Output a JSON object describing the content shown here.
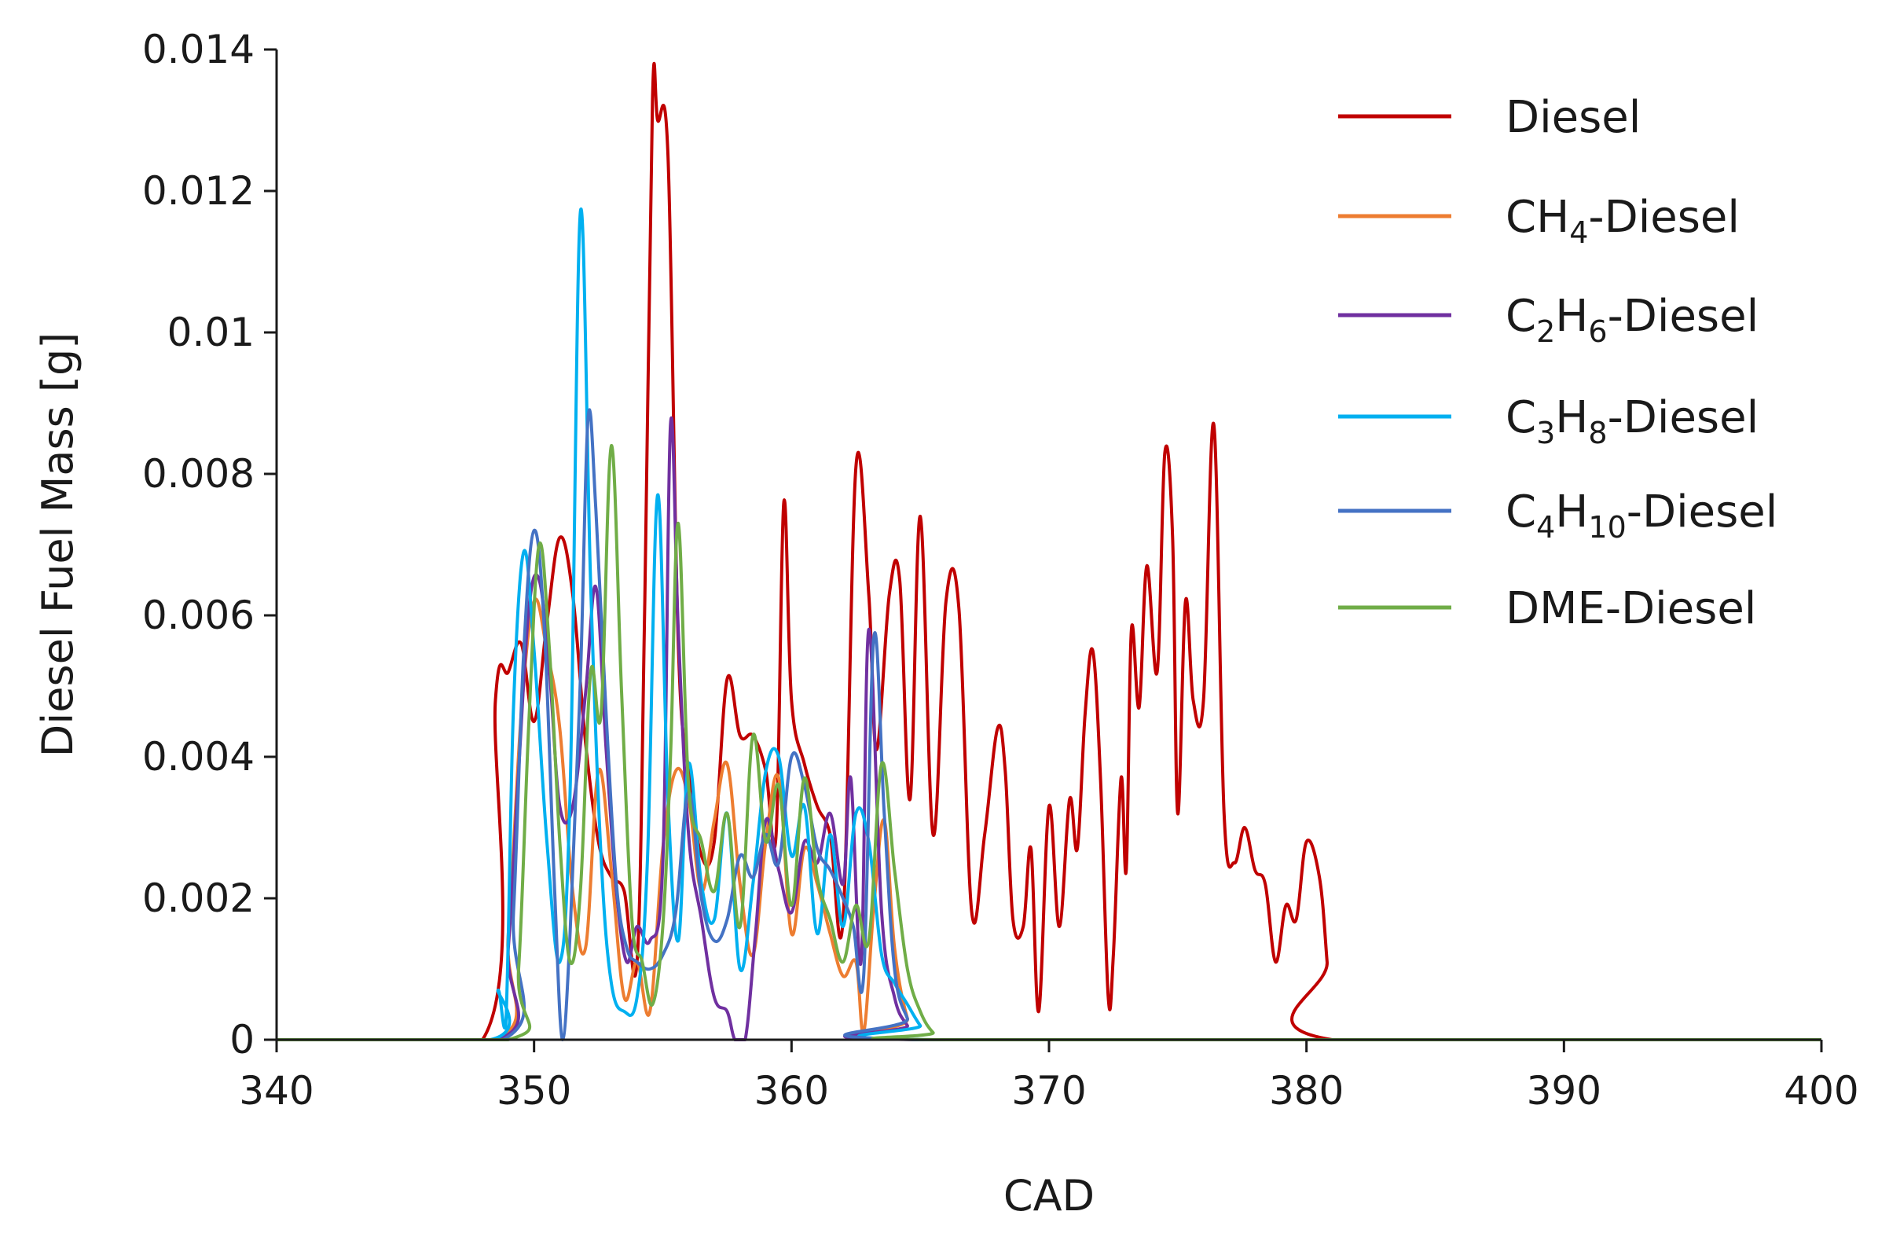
{
  "chart_data": {
    "type": "line",
    "title": "",
    "xlabel": "CAD",
    "ylabel": "Diesel Fuel Mass [g]",
    "xlim": [
      340,
      400
    ],
    "ylim": [
      0,
      0.014
    ],
    "x_ticks": [
      340,
      350,
      360,
      370,
      380,
      390,
      400
    ],
    "y_ticks": [
      0,
      0.002,
      0.004,
      0.006,
      0.008,
      0.01,
      0.012,
      0.014
    ],
    "y_tick_labels": [
      "0",
      "0.002",
      "0.004",
      "0.006",
      "0.008",
      "0.01",
      "0.012",
      "0.014"
    ],
    "grid": false,
    "legend_position": "top-right",
    "series": [
      {
        "name": "Diesel",
        "legend": {
          "base": "Diesel",
          "parts": []
        },
        "color": "#c00000",
        "x": [
          340,
          348.0,
          348.5,
          349.0,
          349.5,
          350.0,
          350.5,
          351.0,
          351.5,
          352.0,
          352.5,
          353.0,
          353.5,
          354.0,
          354.3,
          354.6,
          354.8,
          355.2,
          355.6,
          356.0,
          356.5,
          357.0,
          357.5,
          358.0,
          358.5,
          359.0,
          359.4,
          359.7,
          360.0,
          360.5,
          361.0,
          361.5,
          362.0,
          362.5,
          363.0,
          363.3,
          363.8,
          364.2,
          364.6,
          365.0,
          365.5,
          366.0,
          366.5,
          367.0,
          367.5,
          368.0,
          368.3,
          368.6,
          369.0,
          369.3,
          369.6,
          370.0,
          370.4,
          370.8,
          371.1,
          371.4,
          371.7,
          372.0,
          372.3,
          372.5,
          372.8,
          373.0,
          373.2,
          373.5,
          373.8,
          374.2,
          374.5,
          374.8,
          375.0,
          375.3,
          375.6,
          376.0,
          376.4,
          376.8,
          377.2,
          377.6,
          378.0,
          378.4,
          378.8,
          379.2,
          379.6,
          380.0,
          380.5,
          380.8,
          381.0,
          400
        ],
        "y": [
          0,
          0,
          0.0048,
          0.0052,
          0.0056,
          0.0045,
          0.0059,
          0.0071,
          0.0063,
          0.0042,
          0.0028,
          0.0023,
          0.0021,
          0.0011,
          0.0062,
          0.0133,
          0.013,
          0.0125,
          0.0056,
          0.0038,
          0.0026,
          0.0028,
          0.0051,
          0.0043,
          0.0043,
          0.0038,
          0.0029,
          0.0076,
          0.0048,
          0.0039,
          0.0033,
          0.0029,
          0.0017,
          0.0081,
          0.0063,
          0.0041,
          0.0063,
          0.0065,
          0.0034,
          0.0074,
          0.0029,
          0.0062,
          0.0061,
          0.0018,
          0.0029,
          0.0044,
          0.0038,
          0.0017,
          0.0016,
          0.0027,
          0.0004,
          0.0033,
          0.0016,
          0.0034,
          0.0027,
          0.0046,
          0.0055,
          0.0037,
          0.0006,
          0.0012,
          0.0037,
          0.0024,
          0.0058,
          0.0047,
          0.0067,
          0.0052,
          0.0083,
          0.0071,
          0.0032,
          0.0062,
          0.0048,
          0.0048,
          0.0087,
          0.0032,
          0.0025,
          0.003,
          0.0024,
          0.0022,
          0.0011,
          0.0019,
          0.0017,
          0.0028,
          0.0023,
          0.0011,
          0,
          0
        ]
      },
      {
        "name": "CH4-Diesel",
        "legend": {
          "base": "CH",
          "parts": [
            {
              "sub": "4"
            },
            {
              "text": "-Diesel"
            }
          ]
        },
        "color": "#ed7d31",
        "x": [
          340,
          348.5,
          349.0,
          349.5,
          350.0,
          350.5,
          351.0,
          351.5,
          352.0,
          352.5,
          353.0,
          353.5,
          354.0,
          354.5,
          355.0,
          355.5,
          356.0,
          356.5,
          357.0,
          357.5,
          358.0,
          358.5,
          359.0,
          359.5,
          360.0,
          360.5,
          361.0,
          361.5,
          362.0,
          362.5,
          362.8,
          363.2,
          363.6,
          364.0,
          364.5,
          365.0,
          400
        ],
        "y": [
          0,
          0,
          0.0015,
          0.0046,
          0.0062,
          0.0055,
          0.0044,
          0.0021,
          0.0013,
          0.0038,
          0.0024,
          0.0006,
          0.0011,
          0.0004,
          0.0027,
          0.0038,
          0.0034,
          0.0021,
          0.0031,
          0.0039,
          0.0022,
          0.0012,
          0.0028,
          0.0037,
          0.0015,
          0.0027,
          0.0022,
          0.0015,
          0.0009,
          0.0011,
          0.0001,
          0.0019,
          0.0031,
          0.0013,
          0.0003,
          0,
          0
        ]
      },
      {
        "name": "C2H6-Diesel",
        "legend": {
          "base": "C",
          "parts": [
            {
              "sub": "2"
            },
            {
              "text": "H"
            },
            {
              "sub": "6"
            },
            {
              "text": "-Diesel"
            }
          ]
        },
        "color": "#7030a0",
        "x": [
          340,
          348.6,
          349.0,
          349.4,
          349.8,
          350.2,
          350.6,
          351.0,
          351.5,
          352.0,
          352.4,
          352.8,
          353.2,
          353.6,
          354.0,
          354.5,
          355.0,
          355.3,
          355.6,
          356.0,
          356.5,
          357.0,
          357.5,
          357.8,
          358.2,
          358.6,
          359.0,
          359.5,
          360.0,
          360.5,
          361.0,
          361.5,
          362.0,
          362.3,
          362.7,
          363.0,
          363.5,
          364.0,
          364.5,
          365.0,
          400
        ],
        "y": [
          0,
          0,
          0.0013,
          0.0038,
          0.0061,
          0.0065,
          0.0052,
          0.0033,
          0.0033,
          0.0049,
          0.0064,
          0.0041,
          0.0021,
          0.0011,
          0.0016,
          0.0014,
          0.0025,
          0.0087,
          0.0058,
          0.0029,
          0.0017,
          0.0006,
          0.0004,
          0.0,
          0.0,
          0.0015,
          0.0031,
          0.0024,
          0.0018,
          0.0028,
          0.0025,
          0.0032,
          0.0022,
          0.0037,
          0.0011,
          0.0058,
          0.0018,
          0.0006,
          0.0002,
          0,
          0
        ]
      },
      {
        "name": "C3H8-Diesel",
        "legend": {
          "base": "C",
          "parts": [
            {
              "sub": "3"
            },
            {
              "text": "H"
            },
            {
              "sub": "8"
            },
            {
              "text": "-Diesel"
            }
          ]
        },
        "color": "#00b0f0",
        "x": [
          340,
          348.3,
          348.6,
          348.9,
          349.2,
          349.6,
          350.0,
          350.5,
          351.0,
          351.4,
          351.8,
          352.2,
          352.6,
          353.0,
          353.5,
          354.0,
          354.4,
          354.8,
          355.2,
          355.6,
          356.0,
          356.5,
          357.0,
          357.5,
          358.0,
          358.5,
          359.0,
          359.5,
          360.0,
          360.5,
          361.0,
          361.5,
          362.0,
          362.5,
          363.0,
          363.5,
          364.0,
          364.5,
          365.0,
          365.5,
          400
        ],
        "y": [
          0,
          0,
          0.0007,
          0.0002,
          0.0047,
          0.0069,
          0.0055,
          0.0028,
          0.0011,
          0.0035,
          0.0117,
          0.0064,
          0.0026,
          0.0008,
          0.0004,
          0.0006,
          0.0025,
          0.0077,
          0.0034,
          0.0014,
          0.0039,
          0.0022,
          0.0017,
          0.0032,
          0.001,
          0.0022,
          0.0038,
          0.004,
          0.0026,
          0.0033,
          0.0015,
          0.0029,
          0.0016,
          0.0032,
          0.0028,
          0.0012,
          0.0008,
          0.0005,
          0.0002,
          0,
          0
        ]
      },
      {
        "name": "C4H10-Diesel",
        "legend": {
          "base": "C",
          "parts": [
            {
              "sub": "4"
            },
            {
              "text": "H"
            },
            {
              "sub": "10"
            },
            {
              "text": "-Diesel"
            }
          ]
        },
        "color": "#4472c4",
        "x": [
          340,
          348.8,
          349.2,
          349.6,
          350.0,
          350.4,
          350.8,
          351.1,
          351.4,
          351.8,
          352.1,
          352.4,
          352.8,
          353.2,
          353.6,
          354.0,
          354.5,
          355.0,
          355.5,
          356.0,
          356.5,
          357.0,
          357.5,
          358.0,
          358.5,
          359.0,
          359.5,
          360.0,
          360.5,
          361.0,
          361.5,
          362.0,
          362.4,
          362.8,
          363.2,
          363.6,
          364.0,
          364.5,
          365.0,
          400
        ],
        "y": [
          0,
          0,
          0.0018,
          0.0055,
          0.0072,
          0.0058,
          0.0021,
          0.0,
          0.0015,
          0.0051,
          0.0088,
          0.0075,
          0.0046,
          0.0022,
          0.0013,
          0.0011,
          0.001,
          0.0012,
          0.0018,
          0.0035,
          0.002,
          0.0014,
          0.0017,
          0.0026,
          0.0023,
          0.0029,
          0.0025,
          0.004,
          0.0036,
          0.0027,
          0.0024,
          0.002,
          0.0016,
          0.0009,
          0.0057,
          0.0032,
          0.001,
          0.0003,
          0,
          0
        ]
      },
      {
        "name": "DME-Diesel",
        "legend": {
          "base": "DME-Diesel",
          "parts": []
        },
        "color": "#70ad47",
        "x": [
          340,
          349.0,
          349.4,
          349.8,
          350.2,
          350.6,
          351.0,
          351.4,
          351.8,
          352.2,
          352.6,
          353.0,
          353.4,
          353.8,
          354.2,
          354.6,
          355.0,
          355.3,
          355.6,
          356.0,
          356.5,
          357.0,
          357.5,
          358.0,
          358.5,
          359.0,
          359.5,
          360.0,
          360.5,
          361.0,
          361.5,
          362.0,
          362.5,
          363.0,
          363.5,
          364.0,
          364.5,
          365.0,
          365.5,
          366.0,
          400
        ],
        "y": [
          0,
          0,
          0.001,
          0.0045,
          0.007,
          0.0055,
          0.0028,
          0.0011,
          0.0021,
          0.0052,
          0.0046,
          0.0084,
          0.0049,
          0.0017,
          0.0011,
          0.0005,
          0.0016,
          0.004,
          0.0073,
          0.0036,
          0.0028,
          0.0021,
          0.0032,
          0.0016,
          0.0043,
          0.0028,
          0.0036,
          0.0019,
          0.0037,
          0.0023,
          0.0017,
          0.0011,
          0.0019,
          0.0014,
          0.0039,
          0.0024,
          0.001,
          0.0004,
          0.0001,
          0,
          0
        ]
      }
    ]
  }
}
